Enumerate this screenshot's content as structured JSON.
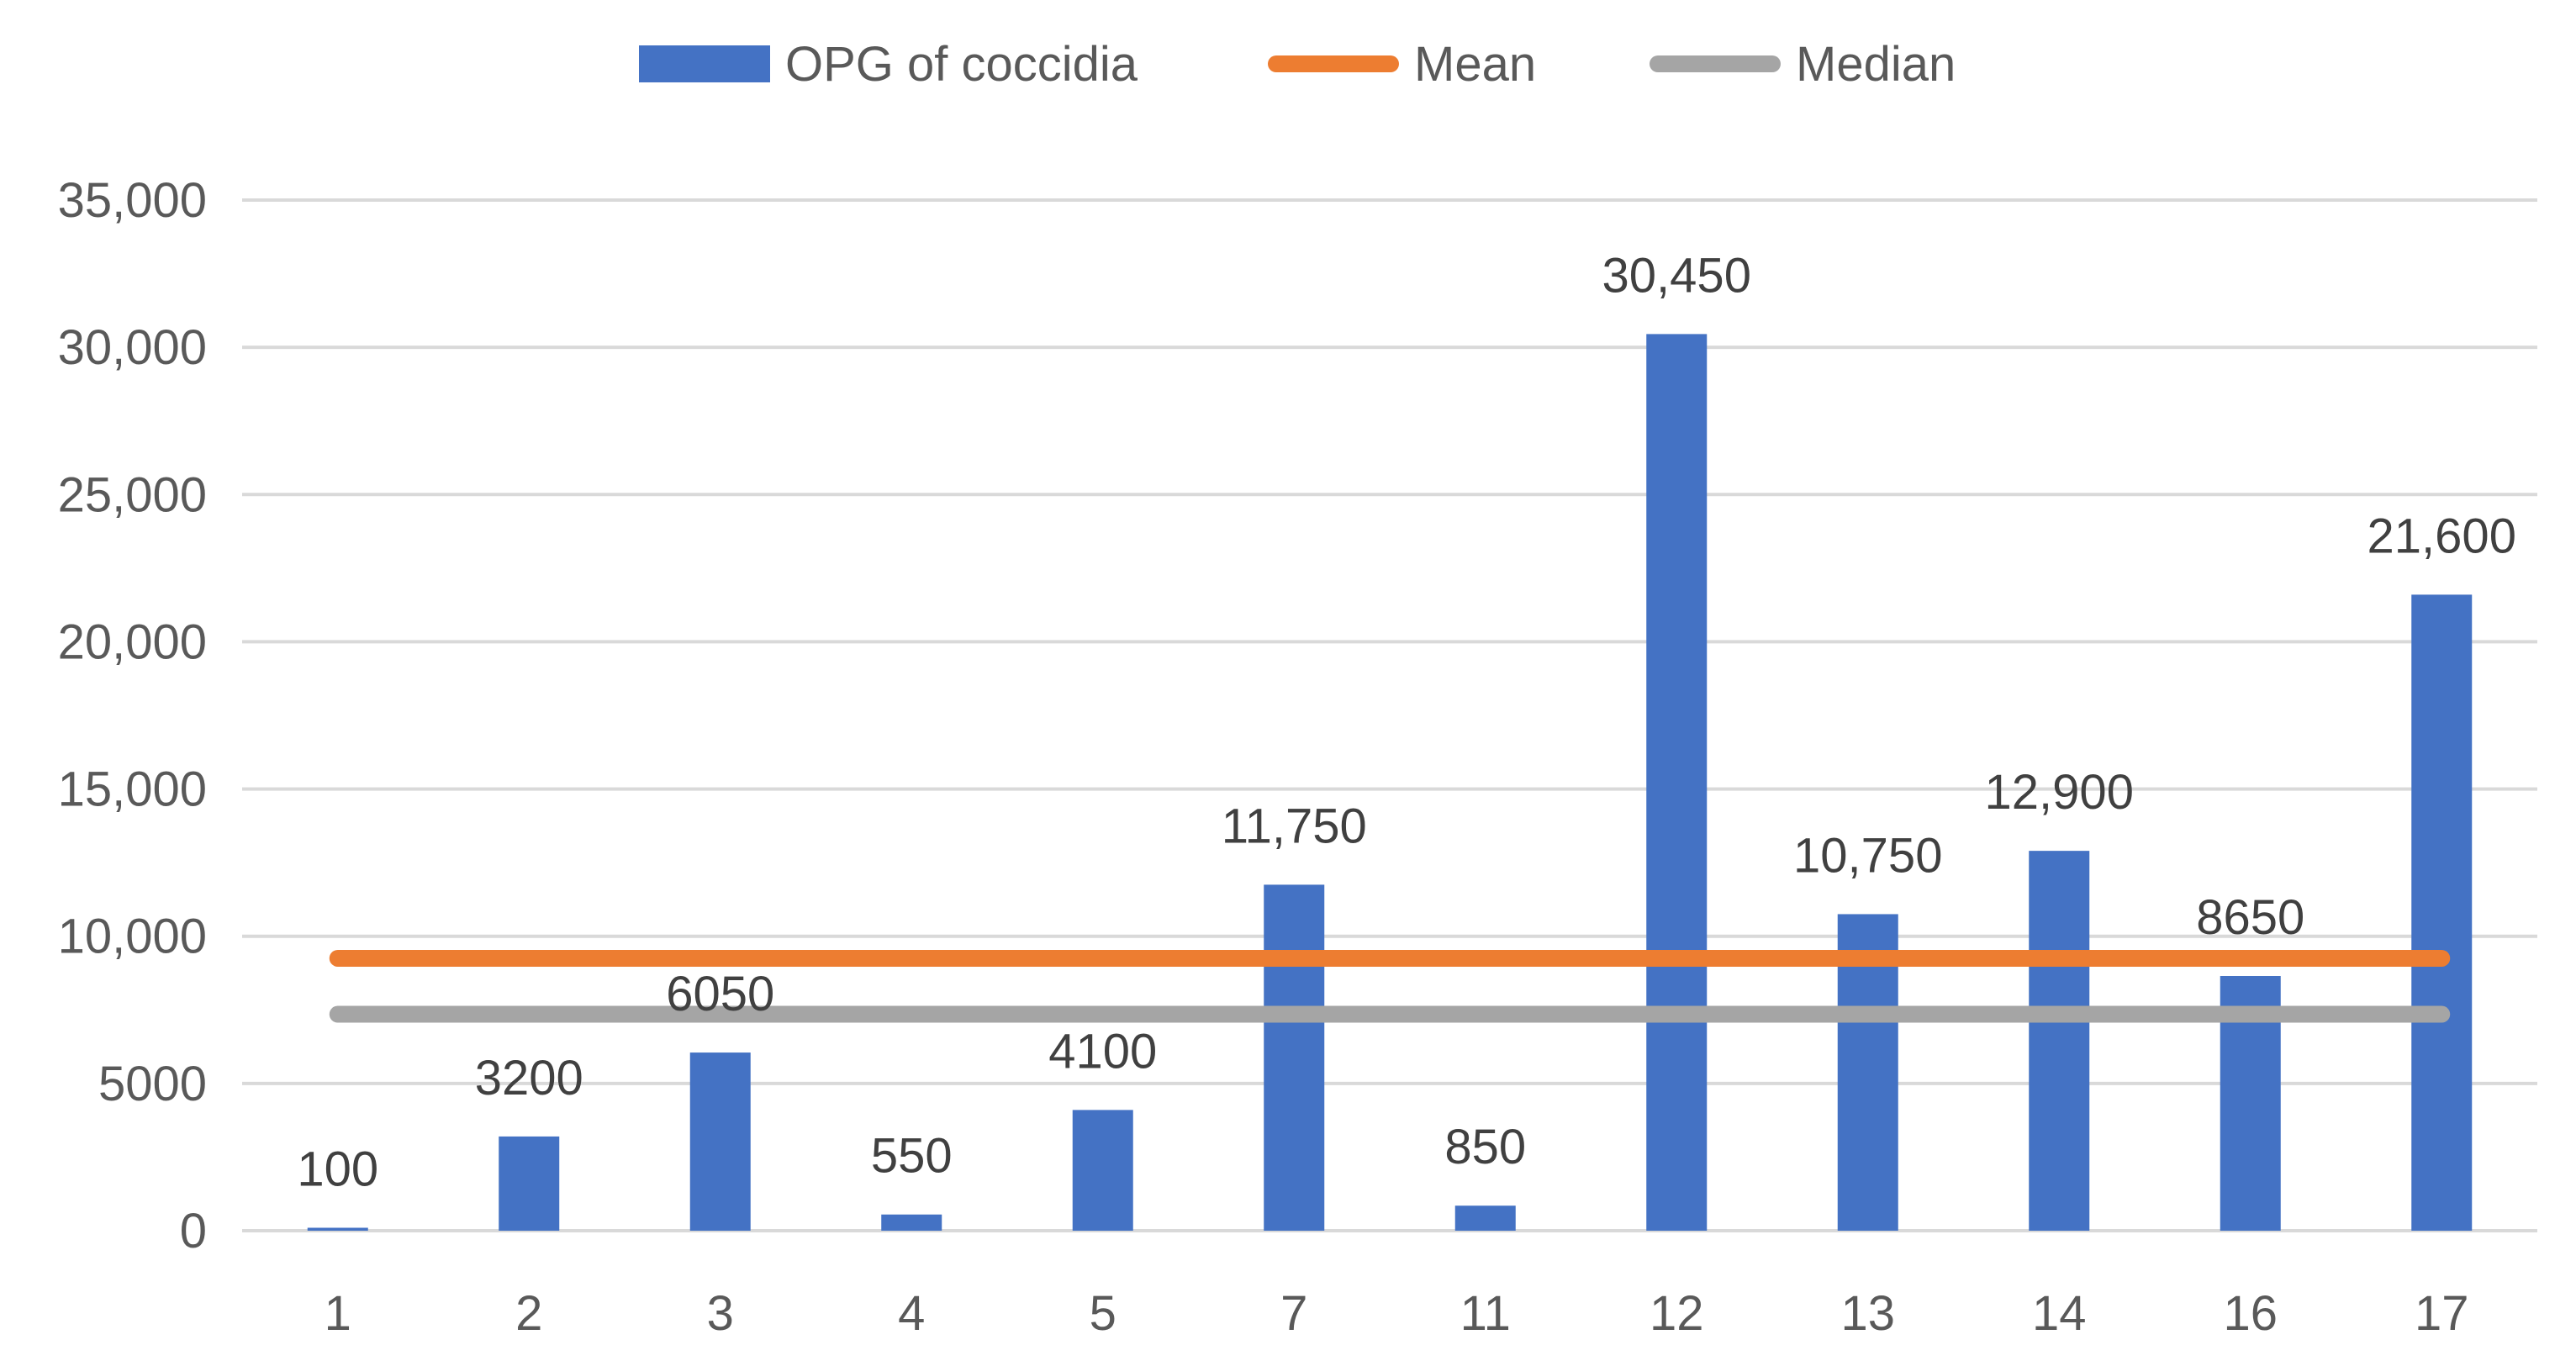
{
  "chart_data": {
    "type": "bar",
    "title": "",
    "xlabel": "",
    "ylabel": "",
    "ylim": [
      0,
      35000
    ],
    "yticks": [
      {
        "value": 0,
        "label": "0"
      },
      {
        "value": 5000,
        "label": "5000"
      },
      {
        "value": 10000,
        "label": "10,000"
      },
      {
        "value": 15000,
        "label": "15,000"
      },
      {
        "value": 20000,
        "label": "20,000"
      },
      {
        "value": 25000,
        "label": "25,000"
      },
      {
        "value": 30000,
        "label": "30,000"
      },
      {
        "value": 35000,
        "label": "35,000"
      }
    ],
    "grid": true,
    "legend_position": "top",
    "categories": [
      "1",
      "2",
      "3",
      "4",
      "5",
      "7",
      "11",
      "12",
      "13",
      "14",
      "16",
      "17"
    ],
    "series": [
      {
        "name": "OPG of coccidia",
        "kind": "bar",
        "color": "#4472C4",
        "values": [
          100,
          3200,
          6050,
          550,
          4100,
          11750,
          850,
          30450,
          10750,
          12900,
          8650,
          21600
        ],
        "labels": [
          "100",
          "3200",
          "6050",
          "550",
          "4100",
          "11,750",
          "850",
          "30,450",
          "10,750",
          "12,900",
          "8650",
          "21,600"
        ]
      },
      {
        "name": "Mean",
        "kind": "line",
        "color": "#ED7D31",
        "value": 9250
      },
      {
        "name": "Median",
        "kind": "line",
        "color": "#A5A5A5",
        "value": 7350
      }
    ],
    "colors": {
      "grid": "#D9D9D9",
      "tick_text": "#595959",
      "label_text": "#404040"
    }
  }
}
